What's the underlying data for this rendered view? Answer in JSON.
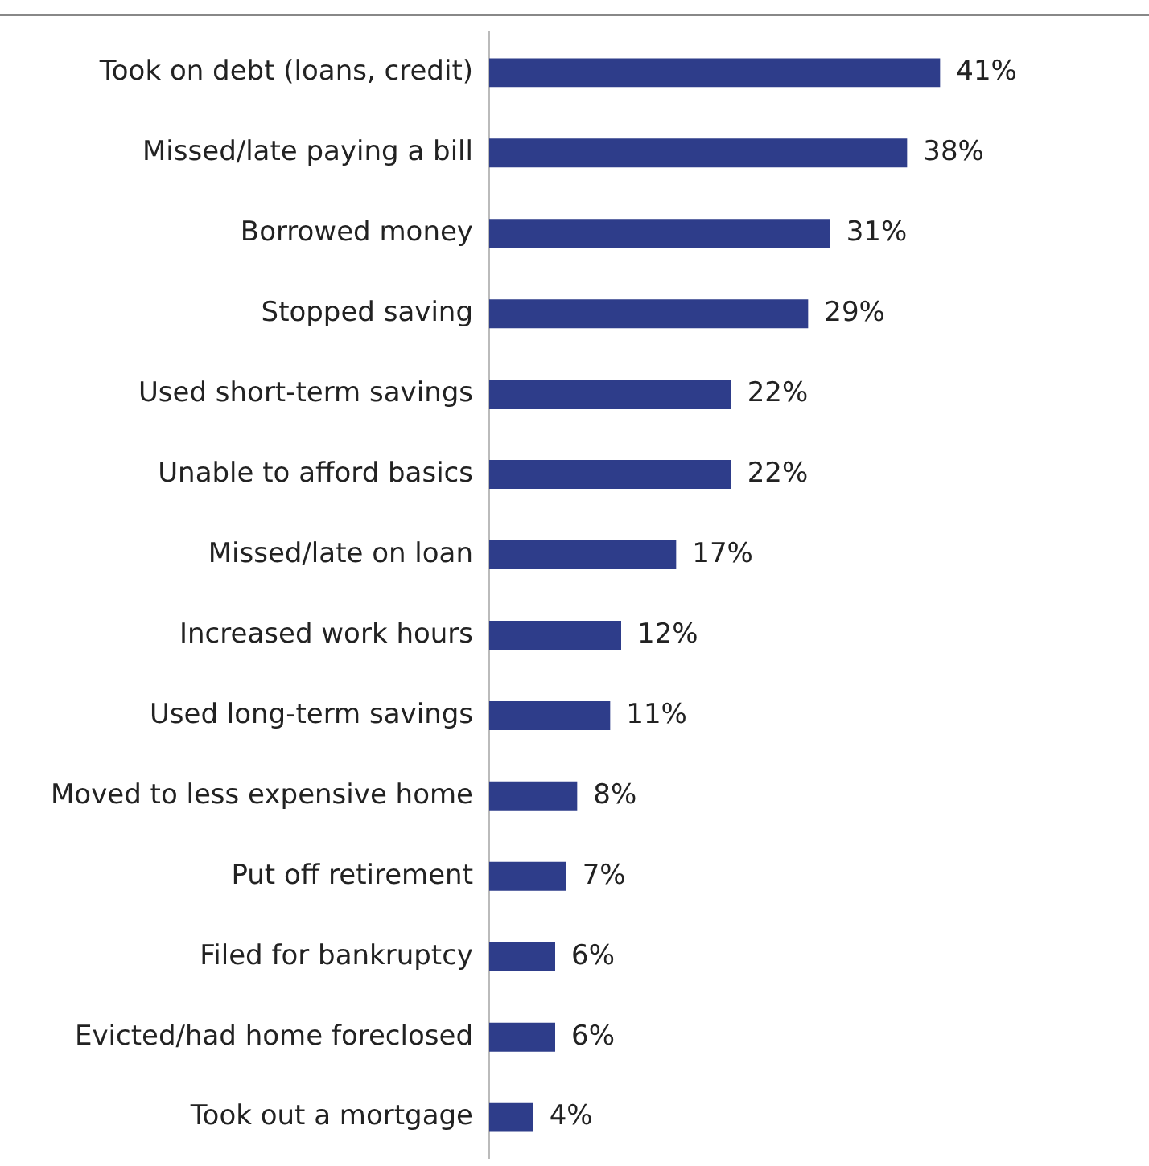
{
  "chart_data": {
    "type": "bar",
    "orientation": "horizontal",
    "categories": [
      "Took on debt (loans, credit)",
      "Missed/late paying a bill",
      "Borrowed money",
      "Stopped saving",
      "Used short-term savings",
      "Unable to afford basics",
      "Missed/late on loan",
      "Increased work hours",
      "Used long-term savings",
      "Moved to less expensive home",
      "Put off retirement",
      "Filed for bankruptcy",
      "Evicted/had home foreclosed",
      "Took out a mortgage"
    ],
    "values": [
      41,
      38,
      31,
      29,
      22,
      22,
      17,
      12,
      11,
      8,
      7,
      6,
      6,
      4
    ],
    "value_labels": [
      "41%",
      "38%",
      "31%",
      "29%",
      "22%",
      "22%",
      "17%",
      "12%",
      "11%",
      "8%",
      "7%",
      "6%",
      "6%",
      "4%"
    ],
    "color": "#2e3d8a",
    "xlim": [
      0,
      60
    ],
    "tick_labels": "y"
  }
}
